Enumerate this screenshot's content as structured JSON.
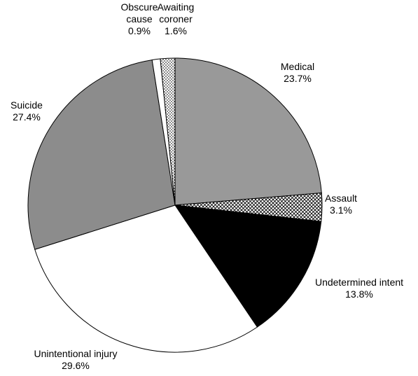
{
  "chart_data": {
    "type": "pie",
    "categories": [
      "Medical",
      "Assault",
      "Undetermined intent",
      "Unintentional injury",
      "Suicide",
      "Obscure cause",
      "Awaiting coroner"
    ],
    "values": [
      23.7,
      3.1,
      13.8,
      29.6,
      27.4,
      0.9,
      1.6
    ],
    "value_labels": [
      "23.7%",
      "3.1%",
      "13.8%",
      "29.6%",
      "27.4%",
      "0.9%",
      "1.6%"
    ],
    "colors": [
      "#999999",
      "#ffffff",
      "#000000",
      "#ffffff",
      "#8c8c8c",
      "#ffffff",
      "#ffffff"
    ],
    "patterns": [
      null,
      "crosshatch",
      null,
      null,
      null,
      null,
      "dots"
    ]
  }
}
